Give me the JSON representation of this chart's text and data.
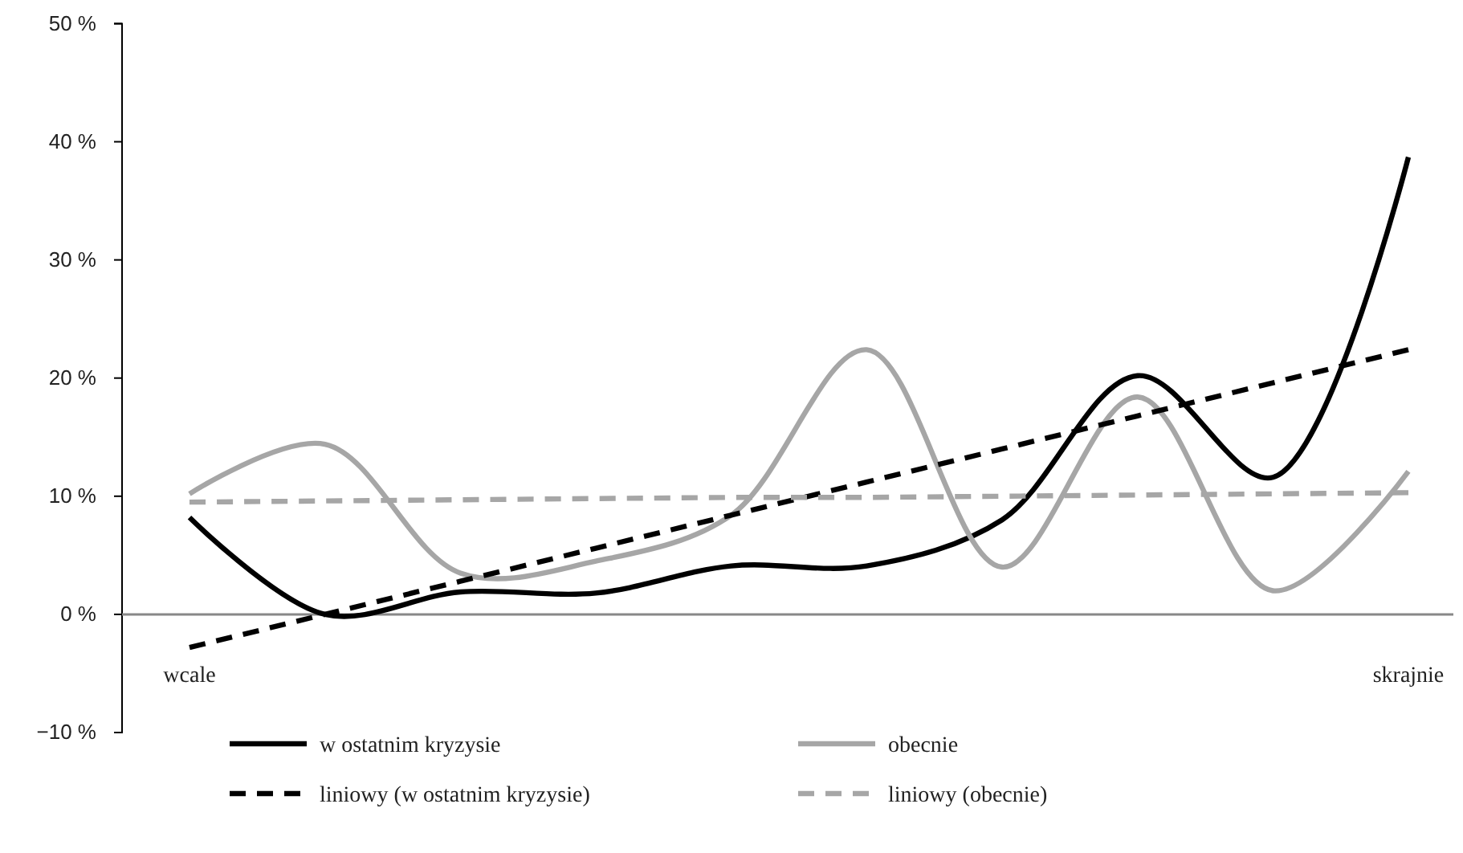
{
  "chart_data": {
    "type": "line",
    "categories": [
      "wcale",
      null,
      null,
      null,
      null,
      null,
      null,
      null,
      null,
      "skrajnie"
    ],
    "series": [
      {
        "name": "w ostatnim kryzysie",
        "color": "#000000",
        "values": [
          8.2,
          0,
          1.9,
          1.8,
          4.1,
          4.1,
          8.0,
          20.2,
          11.6,
          38.7
        ]
      },
      {
        "name": "obecnie",
        "color": "#a6a6a6",
        "values": [
          10.2,
          14.4,
          3.5,
          4.5,
          8.4,
          22.4,
          4.0,
          18.4,
          2.0,
          12.1
        ]
      },
      {
        "name": "liniowy (w ostatnim kryzysie)",
        "color": "#000000",
        "line_style": "dashed",
        "values": [
          -2.8,
          0,
          2.8,
          5.6,
          8.4,
          11.2,
          14.0,
          16.8,
          19.6,
          22.4
        ]
      },
      {
        "name": "liniowy (obecnie)",
        "color": "#a6a6a6",
        "line_style": "dashed",
        "values": [
          9.5,
          9.6,
          9.7,
          9.8,
          9.9,
          9.9,
          10.0,
          10.1,
          10.2,
          10.3
        ]
      }
    ],
    "ylim": [
      -10,
      50
    ],
    "yticks": [
      {
        "value": -10,
        "label": "−10 %"
      },
      {
        "value": 0,
        "label": "0 %"
      },
      {
        "value": 10,
        "label": "10 %"
      },
      {
        "value": 20,
        "label": "20 %"
      },
      {
        "value": 30,
        "label": "30 %"
      },
      {
        "value": 40,
        "label": "40 %"
      },
      {
        "value": 50,
        "label": "50 %"
      }
    ],
    "grid": false,
    "legend": "bottom",
    "marker": "none",
    "line_style": "solid"
  }
}
